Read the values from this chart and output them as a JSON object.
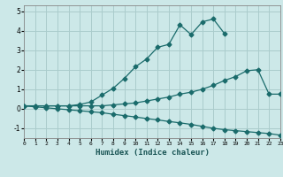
{
  "xlabel": "Humidex (Indice chaleur)",
  "bg_color": "#cce8e8",
  "grid_color": "#aacccc",
  "line_color": "#1a6b6b",
  "line1_x": [
    0,
    1,
    2,
    3,
    4,
    5,
    6,
    7,
    8,
    9,
    10,
    11,
    12,
    13,
    14,
    15,
    16,
    17,
    18
  ],
  "line1_y": [
    0.15,
    0.15,
    0.15,
    0.15,
    0.15,
    0.22,
    0.35,
    0.7,
    1.05,
    1.55,
    2.15,
    2.55,
    3.15,
    3.3,
    4.3,
    3.8,
    4.45,
    4.6,
    3.85
  ],
  "line2_x": [
    0,
    1,
    2,
    3,
    4,
    5,
    6,
    7,
    8,
    9,
    10,
    11,
    12,
    13,
    14,
    15,
    16,
    17,
    18,
    19,
    20,
    21,
    22,
    23
  ],
  "line2_y": [
    0.15,
    0.15,
    0.15,
    0.15,
    0.15,
    0.15,
    0.15,
    0.15,
    0.2,
    0.25,
    0.3,
    0.4,
    0.5,
    0.6,
    0.75,
    0.85,
    1.0,
    1.2,
    1.45,
    1.65,
    1.95,
    2.0,
    0.75,
    0.75
  ],
  "line3_x": [
    0,
    1,
    2,
    3,
    4,
    5,
    6,
    7,
    8,
    9,
    10,
    11,
    12,
    13,
    14,
    15,
    16,
    17,
    18,
    19,
    20,
    21,
    22,
    23
  ],
  "line3_y": [
    0.15,
    0.1,
    0.05,
    0.0,
    -0.05,
    -0.1,
    -0.15,
    -0.2,
    -0.28,
    -0.35,
    -0.42,
    -0.5,
    -0.57,
    -0.65,
    -0.72,
    -0.8,
    -0.9,
    -1.0,
    -1.07,
    -1.12,
    -1.17,
    -1.22,
    -1.27,
    -1.35
  ],
  "xlim": [
    0,
    23
  ],
  "ylim": [
    -1.5,
    5.3
  ],
  "yticks": [
    -1,
    0,
    1,
    2,
    3,
    4,
    5
  ],
  "xticks": [
    0,
    1,
    2,
    3,
    4,
    5,
    6,
    7,
    8,
    9,
    10,
    11,
    12,
    13,
    14,
    15,
    16,
    17,
    18,
    19,
    20,
    21,
    22,
    23
  ]
}
